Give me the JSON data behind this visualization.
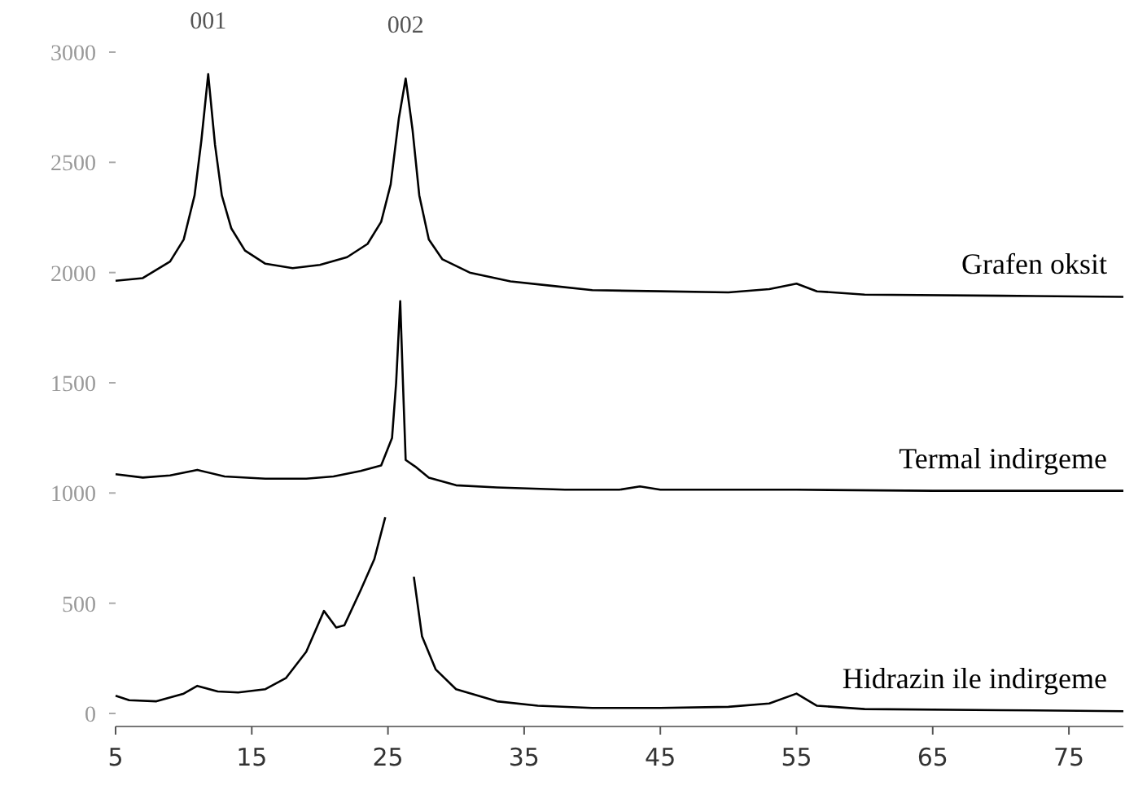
{
  "chart_data": {
    "type": "line",
    "xlim": [
      5,
      79
    ],
    "xticks": [
      5,
      15,
      25,
      35,
      45,
      55,
      65,
      75
    ],
    "ylim": [
      0,
      3000
    ],
    "yticks": [
      0,
      500,
      1000,
      1500,
      2000,
      2500,
      3000
    ],
    "grid": false,
    "marker": "none",
    "line_style": "solid",
    "annotations": [
      {
        "text": "001",
        "x": 11.8,
        "y": 2900
      },
      {
        "text": "002",
        "x": 26.3,
        "y": 2880
      }
    ],
    "series": [
      {
        "name": "Grafen oksit",
        "color": "#000000",
        "x": [
          5,
          7,
          9,
          10,
          10.8,
          11.3,
          11.8,
          12.3,
          12.8,
          13.5,
          14.5,
          16,
          18,
          20,
          22,
          23.5,
          24.5,
          25.2,
          25.8,
          26.3,
          26.8,
          27.3,
          28,
          29,
          31,
          34,
          37,
          40,
          45,
          50,
          53,
          55,
          56.5,
          60,
          70,
          79
        ],
        "values": [
          1963,
          1975,
          2050,
          2150,
          2350,
          2600,
          2900,
          2580,
          2350,
          2200,
          2100,
          2040,
          2020,
          2035,
          2070,
          2130,
          2230,
          2400,
          2700,
          2880,
          2650,
          2350,
          2150,
          2060,
          2000,
          1960,
          1940,
          1920,
          1915,
          1910,
          1925,
          1950,
          1915,
          1900,
          1895,
          1890
        ]
      },
      {
        "name": "Termal indirgeme",
        "color": "#000000",
        "x": [
          5,
          7,
          9,
          11,
          13,
          16,
          19,
          21,
          23,
          24.5,
          25.3,
          25.6,
          25.9,
          26.1,
          26.3,
          27,
          28,
          30,
          33,
          38,
          42,
          43.5,
          45,
          55,
          65,
          79
        ],
        "values": [
          1085,
          1070,
          1080,
          1105,
          1075,
          1065,
          1065,
          1075,
          1100,
          1125,
          1250,
          1500,
          1870,
          1500,
          1150,
          1120,
          1070,
          1035,
          1025,
          1015,
          1015,
          1030,
          1015,
          1015,
          1010,
          1010
        ]
      },
      {
        "name": "Hidrazin ile indirgeme",
        "color": "#000000",
        "x": [
          5,
          6,
          8,
          10,
          11,
          12.5,
          14,
          16,
          17.5,
          19,
          20.3,
          21.2,
          21.8,
          23,
          24,
          24.8,
          25.8,
          26.9,
          27.5,
          28.5,
          30,
          33,
          36,
          40,
          45,
          50,
          53,
          55,
          56.5,
          60,
          70,
          79
        ],
        "values": [
          80,
          60,
          55,
          90,
          125,
          100,
          95,
          110,
          160,
          280,
          465,
          390,
          400,
          560,
          700,
          890,
          null,
          620,
          350,
          200,
          110,
          55,
          35,
          25,
          25,
          30,
          45,
          90,
          35,
          20,
          15,
          10
        ]
      }
    ]
  }
}
